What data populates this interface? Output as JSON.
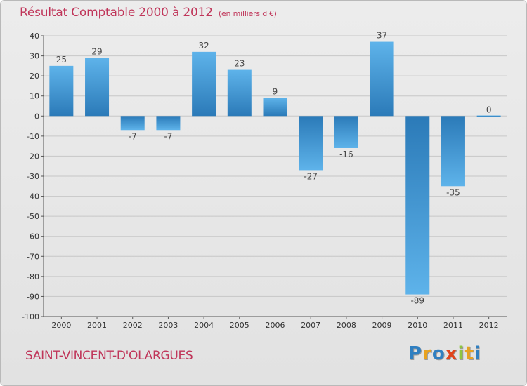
{
  "header": {
    "title": "Résultat Comptable 2000 à 2012",
    "subtitle": "(en milliers d'€)"
  },
  "footer": {
    "commune": "SAINT-VINCENT-D'OLARGUES",
    "logo": [
      "P",
      "r",
      "o",
      "x",
      "i",
      "t",
      "i"
    ],
    "logo_colors": [
      "#2f7fc1",
      "#e8a21f",
      "#2f7fc1",
      "#e0441c",
      "#8ec63f",
      "#e8a21f",
      "#2f7fc1"
    ]
  },
  "colors": {
    "bar_dark": "#2b7ab8",
    "bar_light": "#5eb3ea",
    "grid": "#c7c7c7",
    "accent": "#c0365a"
  },
  "chart_data": {
    "type": "bar",
    "categories": [
      "2000",
      "2001",
      "2002",
      "2003",
      "2004",
      "2005",
      "2006",
      "2007",
      "2008",
      "2009",
      "2010",
      "2011",
      "2012"
    ],
    "values": [
      25,
      29,
      -7,
      -7,
      32,
      23,
      9,
      -27,
      -16,
      37,
      -89,
      -35,
      0
    ],
    "title": "Résultat Comptable 2000 à 2012",
    "subtitle": "(en milliers d'€)",
    "ylim": [
      -100,
      40
    ],
    "yticks": [
      40,
      30,
      20,
      10,
      0,
      -10,
      -20,
      -30,
      -40,
      -50,
      -60,
      -70,
      -80,
      -90,
      -100
    ],
    "grid": true
  }
}
